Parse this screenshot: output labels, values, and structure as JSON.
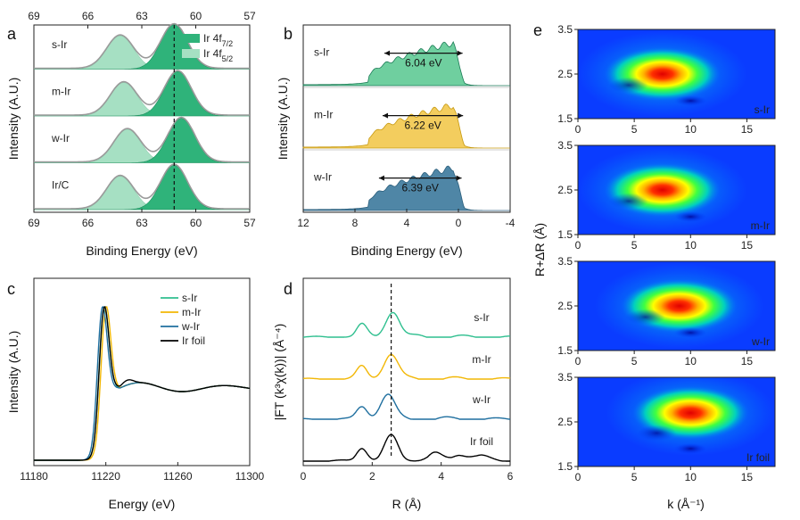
{
  "chart_data": [
    {
      "panel": "a",
      "type": "line",
      "title": "",
      "xlabel": "Binding Energy (eV)",
      "ylabel": "Intensity (A.U.)",
      "xlim": [
        69,
        57
      ],
      "xticks": [
        69,
        66,
        63,
        60,
        57
      ],
      "top_ticks": [
        69,
        66,
        63,
        60,
        57
      ],
      "legend": [
        {
          "label": "Ir 4f",
          "sub": "7/2",
          "color": "#2fb37a"
        },
        {
          "label": "Ir 4f",
          "sub": "5/2",
          "color": "#a6e0c3"
        }
      ],
      "dashed_line_x": 61.2,
      "samples": [
        {
          "name": "s-Ir",
          "peak_72": 61.2,
          "peak_52": 64.2
        },
        {
          "name": "m-Ir",
          "peak_72": 61.0,
          "peak_52": 64.0
        },
        {
          "name": "w-Ir",
          "peak_72": 60.8,
          "peak_52": 63.8
        },
        {
          "name": "Ir/C",
          "peak_72": 61.2,
          "peak_52": 64.2
        }
      ]
    },
    {
      "panel": "b",
      "type": "area",
      "xlabel": "Binding Energy (eV)",
      "ylabel": "Intensity (A.U.)",
      "xlim": [
        12,
        -4
      ],
      "xticks": [
        12,
        8,
        4,
        0,
        -4
      ],
      "series": [
        {
          "name": "s-Ir",
          "width_label": "6.04 eV",
          "band_center": 2.7,
          "color": "#6fcf9f"
        },
        {
          "name": "m-Ir",
          "width_label": "6.22 eV",
          "band_center": 2.75,
          "color": "#f3cd5e"
        },
        {
          "name": "w-Ir",
          "width_label": "6.39 eV",
          "band_center": 2.95,
          "color": "#4f86a6"
        }
      ]
    },
    {
      "panel": "c",
      "type": "line",
      "xlabel": "Energy (eV)",
      "ylabel": "Intensity (A.U.)",
      "xlim": [
        11180,
        11300
      ],
      "xticks": [
        11180,
        11220,
        11260,
        11300
      ],
      "series": [
        {
          "name": "s-Ir",
          "color": "#2fbf8f",
          "edge_peak": 11219
        },
        {
          "name": "m-Ir",
          "color": "#f2b705",
          "edge_peak": 11220
        },
        {
          "name": "w-Ir",
          "color": "#1f6f9f",
          "edge_peak": 11218
        },
        {
          "name": "Ir foil",
          "color": "#000000",
          "edge_peak": 11219
        }
      ]
    },
    {
      "panel": "d",
      "type": "line",
      "xlabel": "R (Å)",
      "ylabel": "|FT (k³χ(k))| (Å⁻⁴)",
      "xlim": [
        0,
        6
      ],
      "xticks": [
        0,
        2,
        4,
        6
      ],
      "dashed_line_x": 2.55,
      "series": [
        {
          "name": "s-Ir",
          "color": "#2fbf8f",
          "main_peak_R": 2.6
        },
        {
          "name": "m-Ir",
          "color": "#f2b705",
          "main_peak_R": 2.55
        },
        {
          "name": "w-Ir",
          "color": "#1f6f9f",
          "main_peak_R": 2.45
        },
        {
          "name": "Ir foil",
          "color": "#000000",
          "main_peak_R": 2.55
        }
      ]
    },
    {
      "panel": "e",
      "type": "heatmap",
      "xlabel": "k (Å⁻¹)",
      "ylabel": "R+ΔR (Å)",
      "xlim": [
        0,
        17.5
      ],
      "ylim": [
        1.5,
        3.5
      ],
      "xticks": [
        0,
        5,
        10,
        15
      ],
      "yticks": [
        1.5,
        2.5,
        3.5
      ],
      "maps": [
        {
          "name": "s-Ir",
          "max_k": 7.5,
          "max_R": 2.5
        },
        {
          "name": "m-Ir",
          "max_k": 7.5,
          "max_R": 2.5
        },
        {
          "name": "w-Ir",
          "max_k": 9.0,
          "max_R": 2.5
        },
        {
          "name": "Ir foil",
          "max_k": 10.0,
          "max_R": 2.7
        }
      ]
    }
  ],
  "labels": {
    "a": "a",
    "b": "b",
    "c": "c",
    "d": "d",
    "e": "e"
  }
}
